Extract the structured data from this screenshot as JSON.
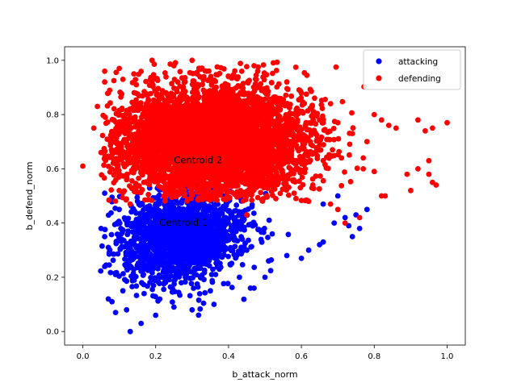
{
  "chart_data": {
    "type": "scatter",
    "title": "",
    "xlabel": "b_attack_norm",
    "ylabel": "b_defend_norm",
    "xlim": [
      -0.05,
      1.05
    ],
    "ylim": [
      -0.05,
      1.05
    ],
    "xticks": [
      "0.0",
      "0.2",
      "0.4",
      "0.6",
      "0.8",
      "1.0"
    ],
    "yticks": [
      "0.0",
      "0.2",
      "0.4",
      "0.6",
      "0.8",
      "1.0"
    ],
    "grid": false,
    "legend_position": "top-right",
    "series": [
      {
        "name": "attacking",
        "color": "#0000ff",
        "summary": {
          "x_center": 0.27,
          "y_center": 0.35,
          "x_spread": 0.085,
          "y_spread": 0.085,
          "estimated_count": 1800
        },
        "points": [
          [
            0.13,
            0.0
          ],
          [
            0.16,
            0.03
          ],
          [
            0.07,
            0.12
          ],
          [
            0.08,
            0.11
          ],
          [
            0.09,
            0.07
          ],
          [
            0.05,
            0.38
          ],
          [
            0.06,
            0.35
          ],
          [
            0.06,
            0.24
          ],
          [
            0.07,
            0.31
          ],
          [
            0.06,
            0.51
          ],
          [
            0.09,
            0.21
          ],
          [
            0.11,
            0.15
          ],
          [
            0.12,
            0.08
          ],
          [
            0.2,
            0.06
          ],
          [
            0.25,
            0.09
          ],
          [
            0.3,
            0.08
          ],
          [
            0.36,
            0.1
          ],
          [
            0.35,
            0.15
          ],
          [
            0.46,
            0.16
          ],
          [
            0.47,
            0.16
          ],
          [
            0.43,
            0.2
          ],
          [
            0.5,
            0.2
          ],
          [
            0.51,
            0.26
          ],
          [
            0.56,
            0.28
          ],
          [
            0.6,
            0.27
          ],
          [
            0.62,
            0.3
          ],
          [
            0.65,
            0.32
          ],
          [
            0.66,
            0.33
          ],
          [
            0.69,
            0.4
          ],
          [
            0.73,
            0.39
          ],
          [
            0.72,
            0.42
          ],
          [
            0.76,
            0.38
          ],
          [
            0.75,
            0.43
          ],
          [
            0.66,
            0.47
          ],
          [
            0.7,
            0.5
          ],
          [
            0.78,
            0.45
          ],
          [
            0.74,
            0.35
          ],
          [
            0.31,
            0.23
          ],
          [
            0.27,
            0.28
          ],
          [
            0.21,
            0.38
          ],
          [
            0.18,
            0.45
          ],
          [
            0.15,
            0.48
          ],
          [
            0.33,
            0.42
          ],
          [
            0.24,
            0.3
          ],
          [
            0.22,
            0.2
          ],
          [
            0.4,
            0.35
          ],
          [
            0.45,
            0.3
          ],
          [
            0.52,
            0.36
          ],
          [
            0.14,
            0.27
          ],
          [
            0.1,
            0.45
          ]
        ]
      },
      {
        "name": "defending",
        "color": "#ff0000",
        "summary": {
          "x_center": 0.35,
          "y_center": 0.7,
          "x_spread": 0.13,
          "y_spread": 0.105,
          "estimated_count": 5000
        },
        "points": [
          [
            0.0,
            0.61
          ],
          [
            0.03,
            0.75
          ],
          [
            0.04,
            0.83
          ],
          [
            0.06,
            0.92
          ],
          [
            0.06,
            0.96
          ],
          [
            0.1,
            0.97
          ],
          [
            0.11,
            0.93
          ],
          [
            0.05,
            0.66
          ],
          [
            0.07,
            0.88
          ],
          [
            0.14,
            0.95
          ],
          [
            0.19,
            1.0
          ],
          [
            0.25,
            0.98
          ],
          [
            0.3,
            1.0
          ],
          [
            0.34,
            0.96
          ],
          [
            0.4,
            0.94
          ],
          [
            0.47,
            0.98
          ],
          [
            0.48,
            0.96
          ],
          [
            0.56,
            0.92
          ],
          [
            0.6,
            0.88
          ],
          [
            0.63,
            0.83
          ],
          [
            0.68,
            0.84
          ],
          [
            0.65,
            0.78
          ],
          [
            0.7,
            0.77
          ],
          [
            0.74,
            0.73
          ],
          [
            0.77,
            0.64
          ],
          [
            0.78,
            0.7
          ],
          [
            0.8,
            0.8
          ],
          [
            0.82,
            0.78
          ],
          [
            0.84,
            0.76
          ],
          [
            0.86,
            0.75
          ],
          [
            0.89,
            0.58
          ],
          [
            0.9,
            0.52
          ],
          [
            0.92,
            0.6
          ],
          [
            0.92,
            0.78
          ],
          [
            0.94,
            0.74
          ],
          [
            0.95,
            0.63
          ],
          [
            0.96,
            0.75
          ],
          [
            0.96,
            0.55
          ],
          [
            0.97,
            0.54
          ],
          [
            1.0,
            0.77
          ],
          [
            0.83,
            0.5
          ],
          [
            0.82,
            0.5
          ],
          [
            0.8,
            0.59
          ],
          [
            0.77,
            0.6
          ],
          [
            0.71,
            0.64
          ],
          [
            0.76,
            0.42
          ],
          [
            0.72,
            0.4
          ],
          [
            0.7,
            0.45
          ],
          [
            0.68,
            0.47
          ],
          [
            0.62,
            0.48
          ],
          [
            0.58,
            0.51
          ],
          [
            0.53,
            0.49
          ],
          [
            0.45,
            0.43
          ],
          [
            0.1,
            0.52
          ],
          [
            0.13,
            0.47
          ],
          [
            0.12,
            0.56
          ],
          [
            0.09,
            0.7
          ],
          [
            0.95,
            0.58
          ]
        ]
      }
    ],
    "annotations": [
      {
        "text": "Centroid 2",
        "x": 0.25,
        "y": 0.62
      },
      {
        "text": "Centroid 1",
        "x": 0.21,
        "y": 0.39
      }
    ]
  }
}
